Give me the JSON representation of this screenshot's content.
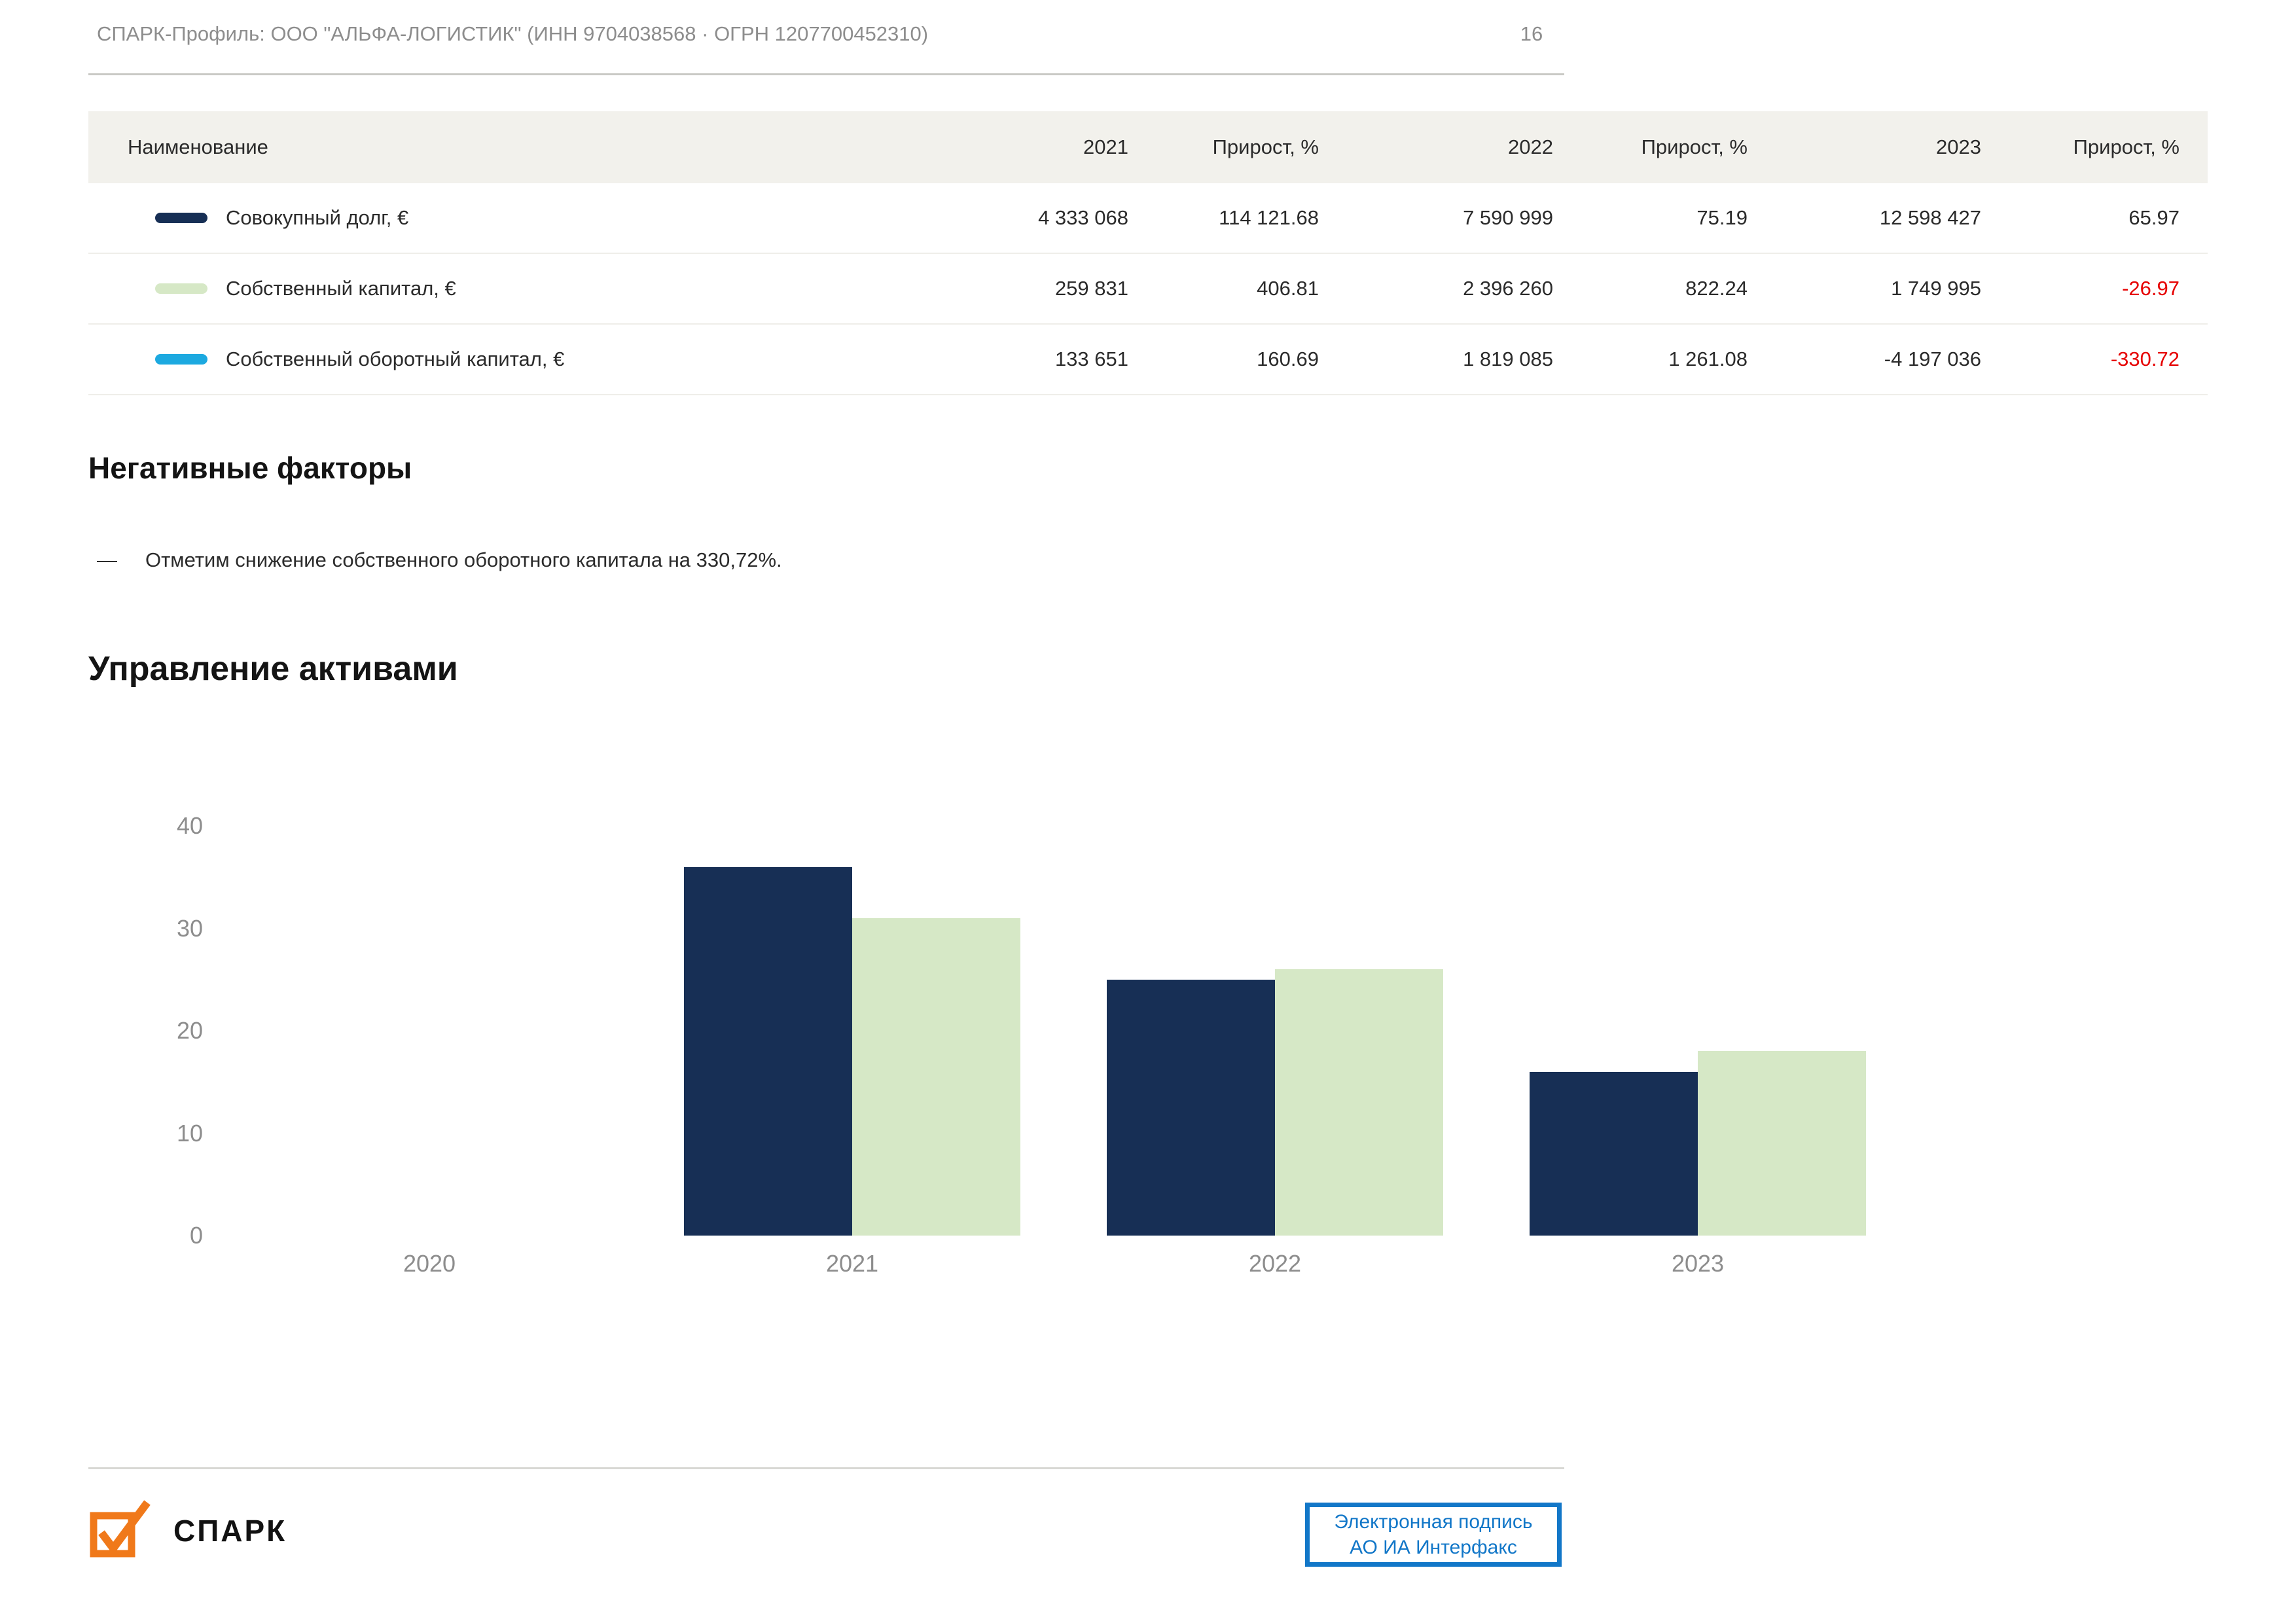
{
  "header": {
    "title": "СПАРК-Профиль: ООО \"АЛЬФА-ЛОГИСТИК\" (ИНН 9704038568 · ОГРН 1207700452310)",
    "page_number": "16"
  },
  "colors": {
    "navy": "#172f55",
    "light_green": "#d6e8c6",
    "cyan": "#1ca9e0",
    "negative_red": "#e60000",
    "stamp_blue": "#1277c8",
    "logo_orange": "#f0791a",
    "table_header_bg": "#f2f1ec",
    "muted_gray": "#8d8d8d"
  },
  "table": {
    "columns": [
      "Наименование",
      "2021",
      "Прирост, %",
      "2022",
      "Прирост, %",
      "2023",
      "Прирост, %"
    ],
    "rows": [
      {
        "label": "Совокупный долг, €",
        "color": "#172f55",
        "values": [
          "4 333 068",
          "114 121.68",
          "7 590 999",
          "75.19",
          "12 598 427",
          "65.97"
        ],
        "red": [
          false,
          false,
          false,
          false,
          false,
          false
        ]
      },
      {
        "label": "Собственный капитал, €",
        "color": "#d6e8c6",
        "values": [
          "259 831",
          "406.81",
          "2 396 260",
          "822.24",
          "1 749 995",
          "-26.97"
        ],
        "red": [
          false,
          false,
          false,
          false,
          false,
          true
        ]
      },
      {
        "label": "Собственный оборотный капитал, €",
        "color": "#1ca9e0",
        "values": [
          "133 651",
          "160.69",
          "1 819 085",
          "1 261.08",
          "-4 197 036",
          "-330.72"
        ],
        "red": [
          false,
          false,
          false,
          false,
          false,
          true
        ]
      }
    ]
  },
  "negative_factors": {
    "heading": "Негативные факторы",
    "items": [
      {
        "marker": "—",
        "text": "Отметим снижение собственного оборотного капитала на 330,72%."
      }
    ]
  },
  "chart_data": {
    "type": "bar",
    "title": "Управление активами",
    "categories": [
      "2020",
      "2021",
      "2022",
      "2023"
    ],
    "series": [
      {
        "name": "navy",
        "color": "#172f55",
        "values": [
          null,
          36,
          25,
          16
        ]
      },
      {
        "name": "light-green",
        "color": "#d6e8c6",
        "values": [
          null,
          31,
          26,
          18
        ]
      }
    ],
    "ylim": [
      0,
      40
    ],
    "yticks": [
      40,
      30,
      20,
      10,
      0
    ],
    "grid": false,
    "legend": "none"
  },
  "footer": {
    "logo_text": "СПАРК",
    "signature": {
      "line1": "Электронная подпись",
      "line2": "АО ИА Интерфакс",
      "color": "#1277c8"
    }
  }
}
